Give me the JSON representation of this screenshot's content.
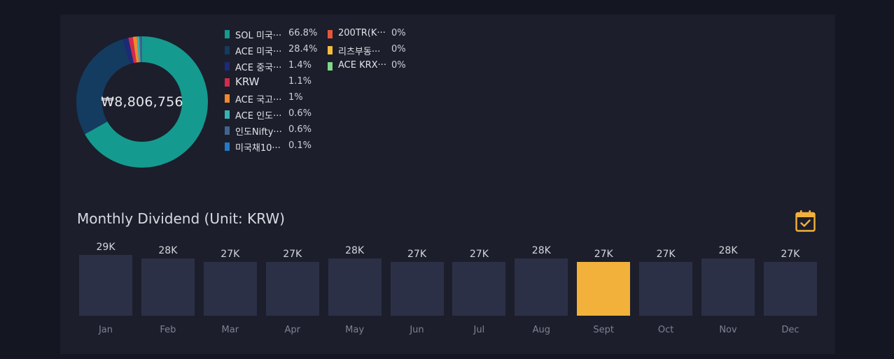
{
  "holdings": {
    "total": "₩8,806,756",
    "items": [
      {
        "name": "SOL 미국···",
        "pct": "66.8%",
        "value": 66.8,
        "color": "#159a8f"
      },
      {
        "name": "ACE 미국···",
        "pct": "28.4%",
        "value": 28.4,
        "color": "#143b60"
      },
      {
        "name": "ACE 중국···",
        "pct": "1.4%",
        "value": 1.4,
        "color": "#1c2a7a"
      },
      {
        "name": "KRW",
        "pct": "1.1%",
        "value": 1.1,
        "color": "#d42a4e"
      },
      {
        "name": "ACE 국고···",
        "pct": "1%",
        "value": 1.0,
        "color": "#f08a2c"
      },
      {
        "name": "ACE 인도···",
        "pct": "0.6%",
        "value": 0.6,
        "color": "#36b3b3"
      },
      {
        "name": "인도Nifty···",
        "pct": "0.6%",
        "value": 0.6,
        "color": "#40648f"
      },
      {
        "name": "미국채10···",
        "pct": "0.1%",
        "value": 0.1,
        "color": "#2478c7"
      },
      {
        "name": "200TR(K···",
        "pct": "0%",
        "value": 0,
        "color": "#e8563a"
      },
      {
        "name": "리츠부동···",
        "pct": "0%",
        "value": 0,
        "color": "#f5bd3c"
      },
      {
        "name": "ACE KRX···",
        "pct": "0%",
        "value": 0,
        "color": "#7ed98a"
      }
    ]
  },
  "dividend": {
    "title": "Monthly Dividend (Unit: KRW)",
    "calendar_icon": "calendar-check-icon",
    "accent_color": "#f2b13b",
    "bar_color": "#2b3047"
  },
  "chart_data": {
    "type": "bar",
    "title": "Monthly Dividend (Unit: KRW)",
    "categories": [
      "Jan",
      "Feb",
      "Mar",
      "Apr",
      "May",
      "Jun",
      "Jul",
      "Aug",
      "Sept",
      "Oct",
      "Nov",
      "Dec"
    ],
    "values": [
      29000,
      28000,
      27000,
      27000,
      28000,
      27000,
      27000,
      28000,
      27000,
      27000,
      28000,
      27000
    ],
    "value_labels": [
      "29K",
      "28K",
      "27K",
      "27K",
      "28K",
      "27K",
      "27K",
      "28K",
      "27K",
      "27K",
      "28K",
      "27K"
    ],
    "highlight": "Sept",
    "xlabel": "",
    "ylabel": "",
    "grid": false
  }
}
